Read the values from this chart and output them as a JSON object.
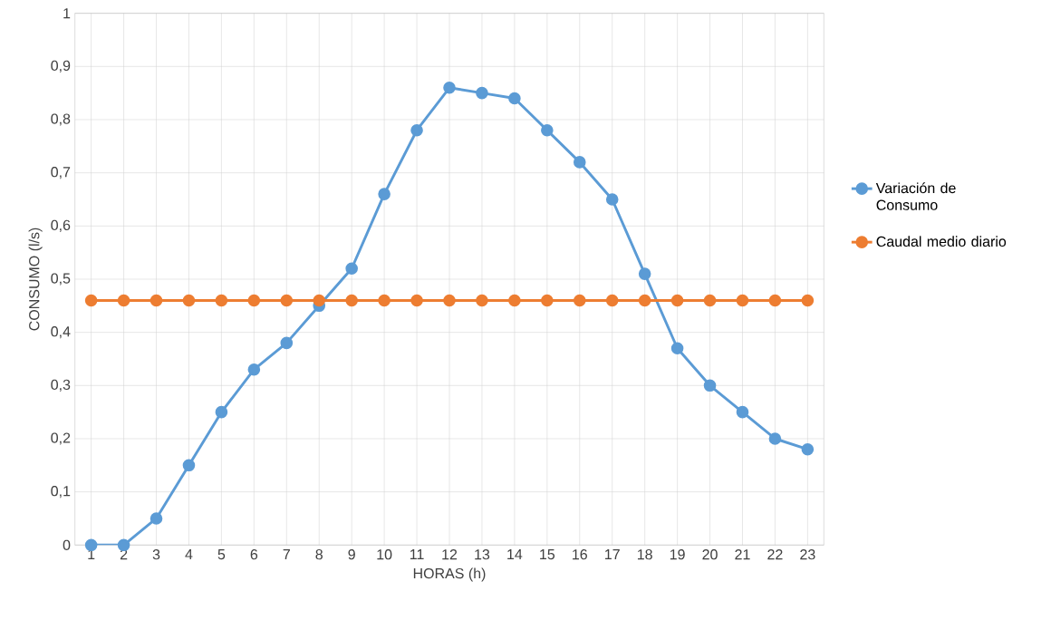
{
  "chart_data": {
    "type": "line",
    "xlabel": "HORAS (h)",
    "ylabel": "CONSUMO (l/s)",
    "categories": [
      "1",
      "2",
      "3",
      "4",
      "5",
      "6",
      "7",
      "8",
      "9",
      "10",
      "11",
      "12",
      "13",
      "14",
      "15",
      "16",
      "17",
      "18",
      "19",
      "20",
      "21",
      "22",
      "23"
    ],
    "series": [
      {
        "name": "Variación de Consumo",
        "color": "#5b9bd5",
        "values": [
          0,
          0,
          0.05,
          0.15,
          0.25,
          0.33,
          0.38,
          0.45,
          0.52,
          0.66,
          0.78,
          0.86,
          0.85,
          0.84,
          0.78,
          0.72,
          0.65,
          0.51,
          0.37,
          0.3,
          0.25,
          0.2,
          0.18
        ]
      },
      {
        "name": "Caudal medio diario",
        "color": "#ed7d31",
        "values": [
          0.46,
          0.46,
          0.46,
          0.46,
          0.46,
          0.46,
          0.46,
          0.46,
          0.46,
          0.46,
          0.46,
          0.46,
          0.46,
          0.46,
          0.46,
          0.46,
          0.46,
          0.46,
          0.46,
          0.46,
          0.46,
          0.46,
          0.46
        ]
      }
    ],
    "ylim": [
      0,
      1
    ],
    "yticks": [
      0,
      {
        "value": 0.1,
        "label": "0,1"
      },
      {
        "value": 0.2,
        "label": "0,2"
      },
      {
        "value": 0.3,
        "label": "0,3"
      },
      {
        "value": 0.4,
        "label": "0,4"
      },
      {
        "value": 0.5,
        "label": "0,5"
      },
      {
        "value": 0.6,
        "label": "0,6"
      },
      {
        "value": 0.7,
        "label": "0,7"
      },
      {
        "value": 0.8,
        "label": "0,8"
      },
      {
        "value": 0.9,
        "label": "0,9"
      },
      1
    ],
    "grid": true,
    "legend": "right",
    "marker": "circle",
    "line_style": "solid"
  }
}
